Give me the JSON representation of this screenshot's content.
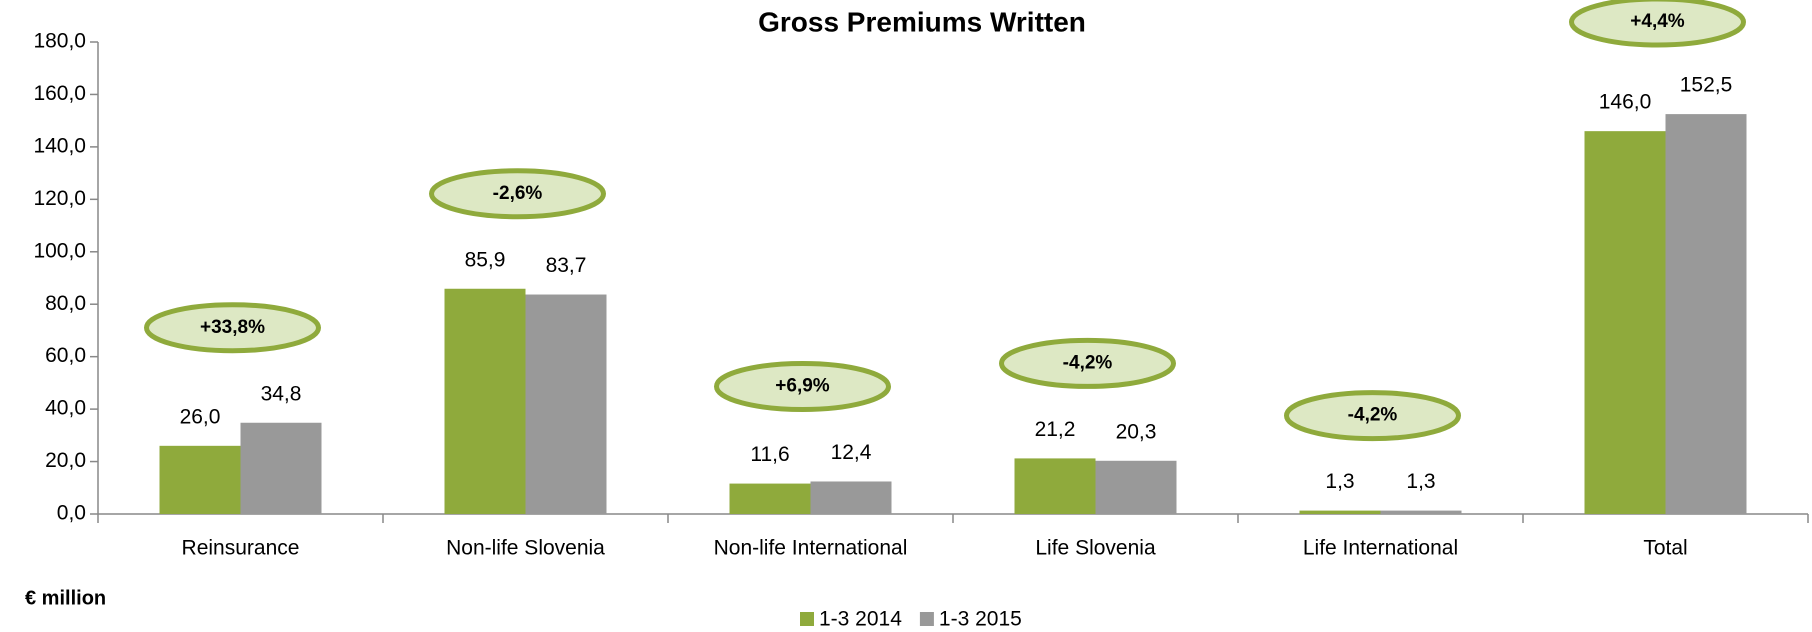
{
  "chart_data": {
    "type": "bar",
    "title": "Gross Premiums Written",
    "categories": [
      "Reinsurance",
      "Non-life Slovenia",
      "Non-life International",
      "Life Slovenia",
      "Life International",
      "Total"
    ],
    "series": [
      {
        "name": "1-3 2014",
        "color": "#8faa3c",
        "values": [
          26.0,
          85.9,
          11.6,
          21.2,
          1.3,
          146.0
        ],
        "value_labels": [
          "26,0",
          "85,9",
          "11,6",
          "21,2",
          "1,3",
          "146,0"
        ]
      },
      {
        "name": "1-3 2015",
        "color": "#999999",
        "values": [
          34.8,
          83.7,
          12.4,
          20.3,
          1.3,
          152.5
        ],
        "value_labels": [
          "34,8",
          "83,7",
          "12,4",
          "20,3",
          "1,3",
          "152,5"
        ]
      }
    ],
    "annotations": [
      "+33,8%",
      "-2,6%",
      "+6,9%",
      "-4,2%",
      "-4,2%",
      "+4,4%"
    ],
    "y_axis_label": "€ million",
    "ylim": [
      0,
      180
    ],
    "yticks": [
      {
        "value": 0,
        "label": "0,0"
      },
      {
        "value": 20,
        "label": "20,0"
      },
      {
        "value": 40,
        "label": "40,0"
      },
      {
        "value": 60,
        "label": "60,0"
      },
      {
        "value": 80,
        "label": "80,0"
      },
      {
        "value": 100,
        "label": "100,0"
      },
      {
        "value": 120,
        "label": "120,0"
      },
      {
        "value": 140,
        "label": "140,0"
      },
      {
        "value": 160,
        "label": "160,0"
      },
      {
        "value": 180,
        "label": "180,0"
      }
    ],
    "grid": false,
    "legend": "bottom"
  }
}
